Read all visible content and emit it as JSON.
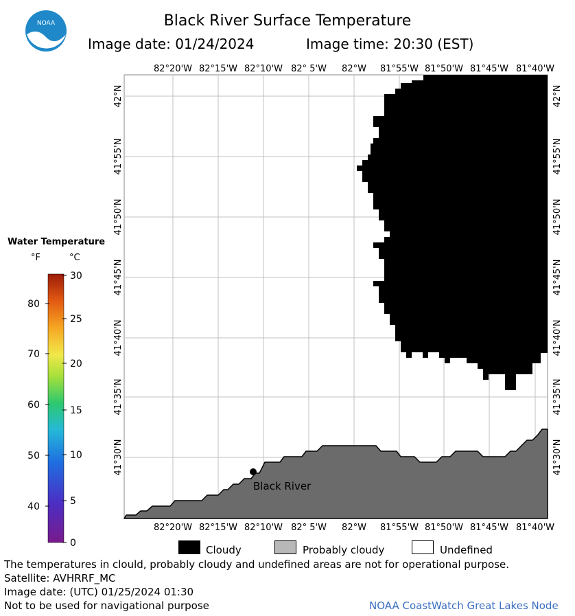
{
  "title": "Black River Surface Temperature",
  "image_date": "Image date: 01/24/2024",
  "image_time": "Image time: 20:30 (EST)",
  "logo_text": "NOAA",
  "colors": {
    "cloudy": "#000000",
    "probably_cloudy": "#6b6b6b",
    "undefined": "#ffffff",
    "grid": "#b8b8b8"
  },
  "map": {
    "lon_labels": [
      "82°20'W",
      "82°15'W",
      "82°10'W",
      "82° 5'W",
      "82°W",
      "81°55'W",
      "81°50'W",
      "81°45'W",
      "81°40'W"
    ],
    "lat_labels": [
      "42°N",
      "41°55'N",
      "41°50'N",
      "41°45'N",
      "41°40'N",
      "41°35'N",
      "41°30'N"
    ],
    "marker_label": "Black River"
  },
  "scale": {
    "title": "Water Temperature",
    "unit_f": "°F",
    "unit_c": "°C",
    "f_ticks": [
      "80",
      "70",
      "60",
      "50",
      "40"
    ],
    "c_ticks": [
      "30",
      "25",
      "20",
      "15",
      "10",
      "5",
      "0"
    ]
  },
  "legend": {
    "cloudy": "Cloudy",
    "probably_cloudy": "Probably cloudy",
    "undefined": "Undefined"
  },
  "footer": {
    "disclaimer": "The temperatures in clould, probably cloudy and undefined areas are not for operational purpose.",
    "satellite": "Satellite: AVHRRF_MC",
    "utc_date": "Image date: (UTC) 01/25/2024  01:30",
    "nav_note": "Not to be used for navigational purpose",
    "credit": "NOAA CoastWatch Great Lakes Node"
  }
}
